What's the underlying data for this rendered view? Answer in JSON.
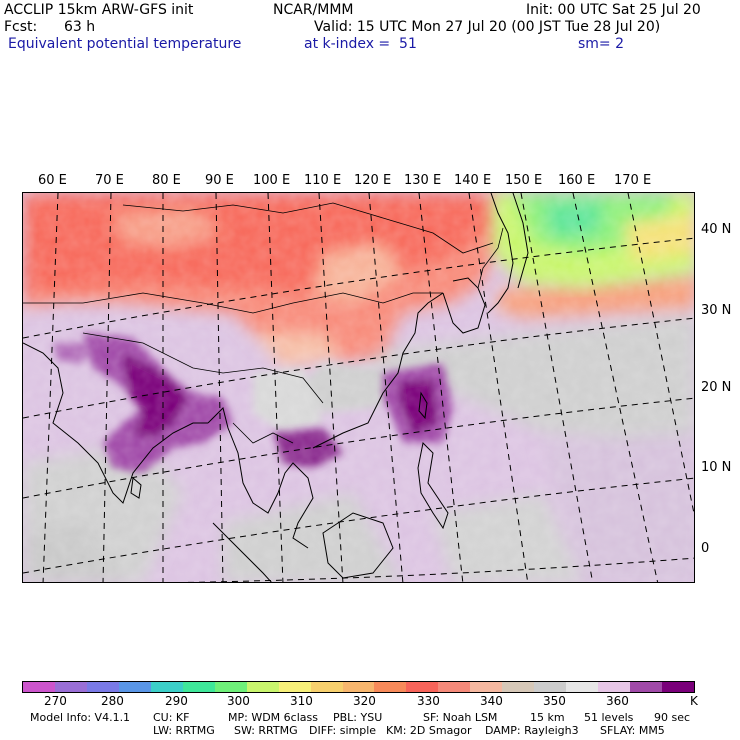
{
  "header": {
    "model": "ACCLIP 15km ARW-GFS init",
    "center": "NCAR/MMM",
    "init": "Init: 00 UTC Sat 25 Jul 20",
    "fcst_label": "Fcst:",
    "fcst_value": "63 h",
    "valid": "Valid: 15 UTC Mon 27 Jul 20 (00 JST Tue 28 Jul 20)",
    "field": "Equivalent potential temperature",
    "level": "at k-index =  51",
    "smoothing": "sm= 2"
  },
  "map": {
    "lon_labels": [
      "60 E",
      "70 E",
      "80 E",
      "90 E",
      "100 E",
      "110 E",
      "120 E",
      "130 E",
      "140 E",
      "150 E",
      "160 E",
      "170 E"
    ],
    "lat_labels": [
      "40 N",
      "30 N",
      "20 N",
      "10 N",
      "0"
    ]
  },
  "colorbar": {
    "colors": [
      "#cc55cc",
      "#9a6fd6",
      "#7a7ae6",
      "#5a96e6",
      "#3ccfc8",
      "#3fe79a",
      "#6ff07a",
      "#c9f56e",
      "#f7f07a",
      "#f7d06e",
      "#f7b66e",
      "#f78a5a",
      "#f7645a",
      "#f58a7a",
      "#f5b8a0",
      "#d6c8b8",
      "#cccccc",
      "#e6e6e6",
      "#e6c6e6",
      "#a04aa8",
      "#7a007a"
    ],
    "tick_labels": [
      "270",
      "280",
      "290",
      "300",
      "310",
      "320",
      "330",
      "340",
      "350",
      "360"
    ],
    "unit": "K"
  },
  "footer": {
    "line1": [
      "Model Info: V4.1.1",
      "CU: KF",
      "MP: WDM 6class",
      "PBL: YSU",
      "SF: Noah LSM",
      "15 km",
      "51 levels",
      "90 sec"
    ],
    "line2": [
      "LW: RRTMG",
      "SW: RRTMG",
      "DIFF: simple",
      "KM: 2D Smagor",
      "DAMP: Rayleigh3",
      "SFLAY: MM5"
    ]
  }
}
